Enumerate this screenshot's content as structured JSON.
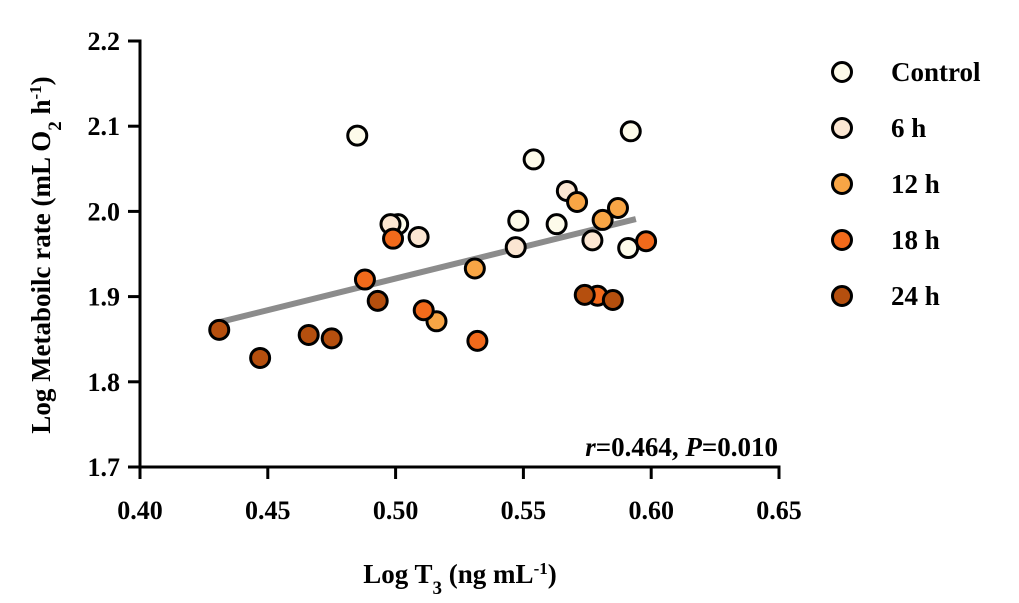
{
  "chart_data": {
    "type": "scatter",
    "xlabel": {
      "main": "Log T",
      "sub": "3",
      "rest": " (ng mL",
      "sup": "-1",
      "end": ")"
    },
    "ylabel": {
      "main": "Log Metaboilc rate  (mL O",
      "sub": "2",
      "rest": " h",
      "sup": "-1",
      "end": ")"
    },
    "xlim": [
      0.4,
      0.65
    ],
    "ylim": [
      1.7,
      2.2
    ],
    "x_ticks": [
      "0.40",
      "0.45",
      "0.50",
      "0.55",
      "0.60",
      "0.65"
    ],
    "y_ticks": [
      "1.7",
      "1.8",
      "1.9",
      "2.0",
      "2.1",
      "2.2"
    ],
    "grid": false,
    "legend_position": "right",
    "annotation": {
      "r_label": "r",
      "r_value": "=0.464, ",
      "p_label": "P",
      "p_value": "=0.010"
    },
    "trendline": {
      "x": [
        0.431,
        0.594
      ],
      "y": [
        1.87,
        1.991
      ],
      "color": "#8c8c8c"
    },
    "series": [
      {
        "name": "Control",
        "color": "#fdfbea",
        "points": [
          [
            0.485,
            2.089
          ],
          [
            0.501,
            1.985
          ],
          [
            0.548,
            1.989
          ],
          [
            0.554,
            2.061
          ],
          [
            0.563,
            1.985
          ],
          [
            0.592,
            2.094
          ],
          [
            0.591,
            1.957
          ]
        ]
      },
      {
        "name": "6 h",
        "color": "#fbe6d2",
        "points": [
          [
            0.498,
            1.985
          ],
          [
            0.509,
            1.97
          ],
          [
            0.547,
            1.958
          ],
          [
            0.567,
            2.024
          ],
          [
            0.577,
            1.966
          ]
        ]
      },
      {
        "name": "12 h",
        "color": "#f8a545",
        "points": [
          [
            0.531,
            1.933
          ],
          [
            0.516,
            1.871
          ],
          [
            0.571,
            2.011
          ],
          [
            0.581,
            1.99
          ],
          [
            0.587,
            2.004
          ]
        ]
      },
      {
        "name": "18 h",
        "color": "#f26a1b",
        "points": [
          [
            0.499,
            1.968
          ],
          [
            0.488,
            1.92
          ],
          [
            0.511,
            1.884
          ],
          [
            0.532,
            1.848
          ],
          [
            0.579,
            1.901
          ],
          [
            0.598,
            1.965
          ]
        ]
      },
      {
        "name": "24 h",
        "color": "#b54f0e",
        "points": [
          [
            0.431,
            1.861
          ],
          [
            0.447,
            1.828
          ],
          [
            0.466,
            1.855
          ],
          [
            0.475,
            1.851
          ],
          [
            0.493,
            1.895
          ],
          [
            0.574,
            1.902
          ],
          [
            0.585,
            1.896
          ]
        ]
      }
    ]
  }
}
